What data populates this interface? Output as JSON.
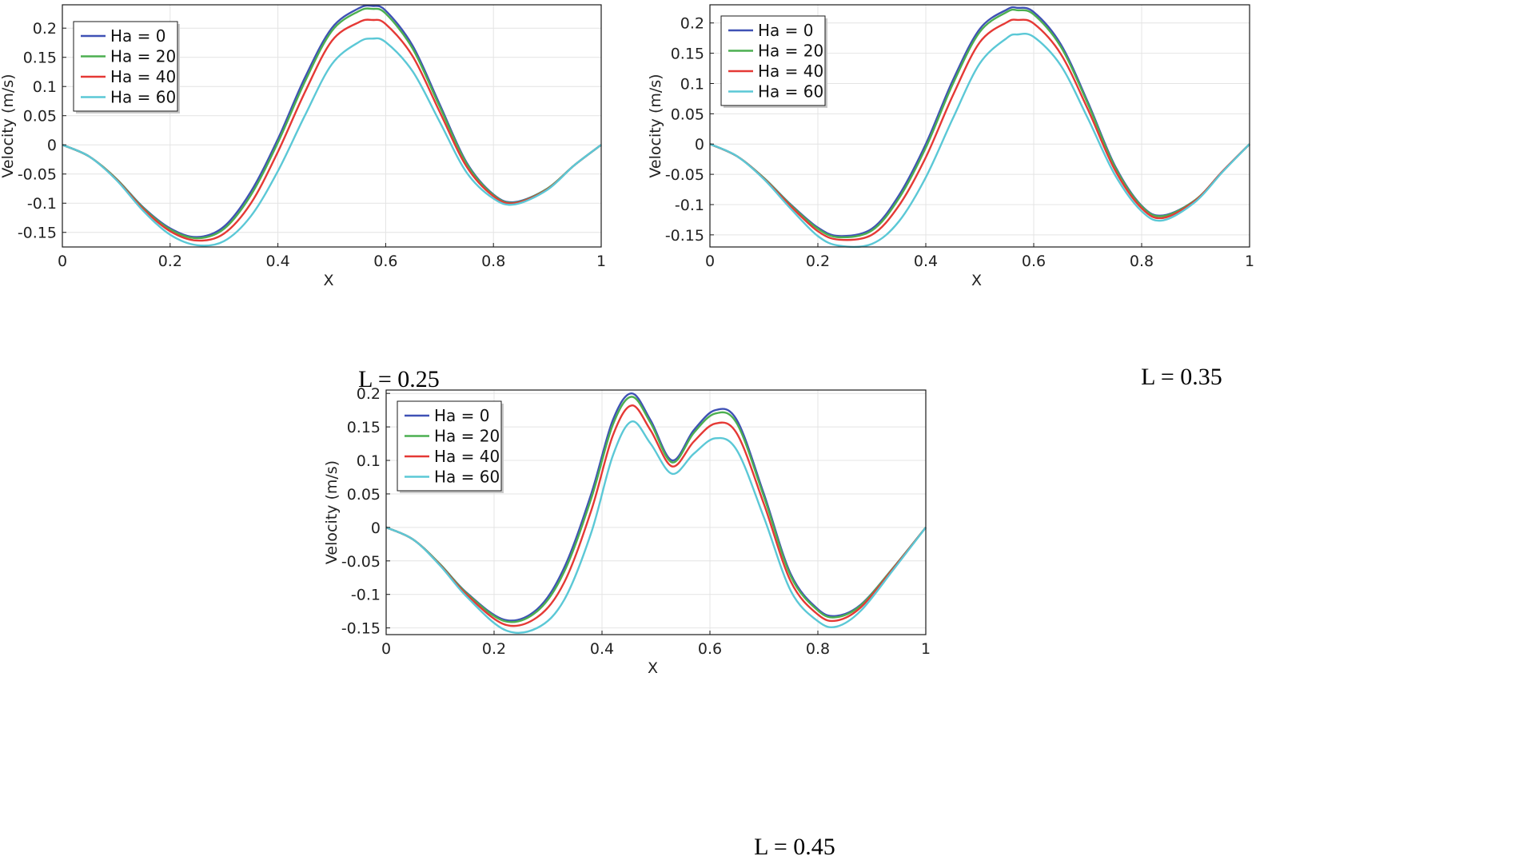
{
  "chart_data": [
    {
      "type": "line",
      "caption": "L = 0.25",
      "xlabel": "X",
      "ylabel": "Velocity (m/s)",
      "xlim": [
        0,
        1
      ],
      "ylim": [
        -0.175,
        0.24
      ],
      "xticks": [
        0,
        0.2,
        0.4,
        0.6,
        0.8,
        1
      ],
      "xtick_labels": [
        "0",
        "0.2",
        "0.4",
        "0.6",
        "0.8",
        "1"
      ],
      "yticks": [
        -0.15,
        -0.1,
        -0.05,
        0,
        0.05,
        0.1,
        0.15,
        0.2
      ],
      "ytick_labels": [
        "-0.15",
        "-0.1",
        "-0.05",
        "0",
        "0.05",
        "0.1",
        "0.15",
        "0.2"
      ],
      "grid": true,
      "legend": "top-left",
      "series": [
        {
          "name": "Ha = 0",
          "color": "#3f51b5",
          "x": [
            0,
            0.05,
            0.1,
            0.15,
            0.2,
            0.25,
            0.3,
            0.35,
            0.4,
            0.45,
            0.5,
            0.55,
            0.575,
            0.6,
            0.65,
            0.7,
            0.75,
            0.8,
            0.84,
            0.9,
            0.95,
            1
          ],
          "y": [
            0,
            -0.02,
            -0.058,
            -0.107,
            -0.143,
            -0.158,
            -0.14,
            -0.08,
            0.01,
            0.115,
            0.2,
            0.234,
            0.238,
            0.23,
            0.17,
            0.07,
            -0.03,
            -0.085,
            -0.098,
            -0.075,
            -0.035,
            0
          ]
        },
        {
          "name": "Ha = 20",
          "color": "#4caf50",
          "x": [
            0,
            0.05,
            0.1,
            0.15,
            0.2,
            0.25,
            0.3,
            0.35,
            0.4,
            0.45,
            0.5,
            0.55,
            0.575,
            0.6,
            0.65,
            0.7,
            0.75,
            0.8,
            0.84,
            0.9,
            0.95,
            1
          ],
          "y": [
            0,
            -0.02,
            -0.058,
            -0.108,
            -0.145,
            -0.16,
            -0.144,
            -0.086,
            0.004,
            0.108,
            0.195,
            0.229,
            0.233,
            0.225,
            0.165,
            0.066,
            -0.032,
            -0.086,
            -0.099,
            -0.075,
            -0.035,
            0
          ]
        },
        {
          "name": "Ha = 40",
          "color": "#e53935",
          "x": [
            0,
            0.05,
            0.1,
            0.15,
            0.2,
            0.25,
            0.3,
            0.35,
            0.4,
            0.45,
            0.5,
            0.55,
            0.575,
            0.6,
            0.65,
            0.7,
            0.75,
            0.8,
            0.84,
            0.9,
            0.95,
            1
          ],
          "y": [
            0,
            -0.02,
            -0.059,
            -0.11,
            -0.148,
            -0.164,
            -0.152,
            -0.1,
            -0.012,
            0.09,
            0.178,
            0.21,
            0.214,
            0.207,
            0.152,
            0.057,
            -0.037,
            -0.088,
            -0.1,
            -0.076,
            -0.035,
            0
          ]
        },
        {
          "name": "Ha = 60",
          "color": "#5bc8d6",
          "x": [
            0,
            0.05,
            0.1,
            0.15,
            0.2,
            0.25,
            0.3,
            0.35,
            0.4,
            0.45,
            0.5,
            0.55,
            0.575,
            0.6,
            0.65,
            0.7,
            0.75,
            0.8,
            0.84,
            0.9,
            0.95,
            1
          ],
          "y": [
            0,
            -0.02,
            -0.06,
            -0.113,
            -0.154,
            -0.172,
            -0.165,
            -0.122,
            -0.045,
            0.05,
            0.138,
            0.176,
            0.182,
            0.176,
            0.126,
            0.04,
            -0.047,
            -0.092,
            -0.102,
            -0.077,
            -0.035,
            0
          ]
        }
      ]
    },
    {
      "type": "line",
      "caption": "L = 0.35",
      "xlabel": "X",
      "ylabel": "Velocity (m/s)",
      "xlim": [
        0,
        1
      ],
      "ylim": [
        -0.17,
        0.23
      ],
      "xticks": [
        0,
        0.2,
        0.4,
        0.6,
        0.8,
        1
      ],
      "xtick_labels": [
        "0",
        "0.2",
        "0.4",
        "0.6",
        "0.8",
        "1"
      ],
      "yticks": [
        -0.15,
        -0.1,
        -0.05,
        0,
        0.05,
        0.1,
        0.15,
        0.2
      ],
      "ytick_labels": [
        "-0.15",
        "-0.1",
        "-0.05",
        "0",
        "0.05",
        "0.1",
        "0.15",
        "0.2"
      ],
      "grid": true,
      "legend": "top-left",
      "series": [
        {
          "name": "Ha = 0",
          "color": "#3f51b5",
          "x": [
            0,
            0.05,
            0.1,
            0.15,
            0.2,
            0.24,
            0.3,
            0.35,
            0.4,
            0.45,
            0.5,
            0.55,
            0.57,
            0.6,
            0.65,
            0.7,
            0.75,
            0.8,
            0.84,
            0.9,
            0.95,
            1
          ],
          "y": [
            0,
            -0.02,
            -0.056,
            -0.1,
            -0.138,
            -0.152,
            -0.14,
            -0.085,
            0.0,
            0.105,
            0.19,
            0.222,
            0.225,
            0.218,
            0.165,
            0.07,
            -0.035,
            -0.102,
            -0.118,
            -0.092,
            -0.045,
            0
          ]
        },
        {
          "name": "Ha = 20",
          "color": "#4caf50",
          "x": [
            0,
            0.05,
            0.1,
            0.15,
            0.2,
            0.24,
            0.3,
            0.35,
            0.4,
            0.45,
            0.5,
            0.55,
            0.57,
            0.6,
            0.65,
            0.7,
            0.75,
            0.8,
            0.84,
            0.9,
            0.95,
            1
          ],
          "y": [
            0,
            -0.02,
            -0.056,
            -0.101,
            -0.14,
            -0.154,
            -0.143,
            -0.09,
            -0.006,
            0.099,
            0.185,
            0.218,
            0.221,
            0.214,
            0.161,
            0.067,
            -0.037,
            -0.103,
            -0.119,
            -0.092,
            -0.045,
            0
          ]
        },
        {
          "name": "Ha = 40",
          "color": "#e53935",
          "x": [
            0,
            0.05,
            0.1,
            0.15,
            0.2,
            0.24,
            0.3,
            0.35,
            0.4,
            0.45,
            0.5,
            0.55,
            0.57,
            0.6,
            0.65,
            0.7,
            0.75,
            0.8,
            0.84,
            0.9,
            0.95,
            1
          ],
          "y": [
            0,
            -0.02,
            -0.057,
            -0.103,
            -0.144,
            -0.158,
            -0.15,
            -0.102,
            -0.022,
            0.08,
            0.168,
            0.201,
            0.205,
            0.199,
            0.149,
            0.058,
            -0.042,
            -0.106,
            -0.122,
            -0.093,
            -0.045,
            0
          ]
        },
        {
          "name": "Ha = 60",
          "color": "#5bc8d6",
          "x": [
            0,
            0.05,
            0.1,
            0.15,
            0.2,
            0.24,
            0.3,
            0.35,
            0.4,
            0.45,
            0.5,
            0.55,
            0.57,
            0.6,
            0.65,
            0.7,
            0.75,
            0.8,
            0.84,
            0.9,
            0.95,
            1
          ],
          "y": [
            0,
            -0.02,
            -0.058,
            -0.107,
            -0.152,
            -0.168,
            -0.165,
            -0.128,
            -0.055,
            0.042,
            0.133,
            0.175,
            0.181,
            0.177,
            0.13,
            0.043,
            -0.05,
            -0.111,
            -0.126,
            -0.095,
            -0.046,
            0
          ]
        }
      ]
    },
    {
      "type": "line",
      "caption": "L = 0.45",
      "xlabel": "X",
      "ylabel": "Velocity (m/s)",
      "xlim": [
        0,
        1
      ],
      "ylim": [
        -0.16,
        0.205
      ],
      "xticks": [
        0,
        0.2,
        0.4,
        0.6,
        0.8,
        1
      ],
      "xtick_labels": [
        "0",
        "0.2",
        "0.4",
        "0.6",
        "0.8",
        "1"
      ],
      "yticks": [
        -0.15,
        -0.1,
        -0.05,
        0,
        0.05,
        0.1,
        0.15,
        0.2
      ],
      "ytick_labels": [
        "-0.15",
        "-0.1",
        "-0.05",
        "0",
        "0.05",
        "0.1",
        "0.15",
        "0.2"
      ],
      "grid": true,
      "legend": "top-left",
      "series": [
        {
          "name": "Ha = 0",
          "color": "#3f51b5",
          "x": [
            0,
            0.05,
            0.1,
            0.15,
            0.22,
            0.28,
            0.33,
            0.38,
            0.42,
            0.455,
            0.49,
            0.53,
            0.57,
            0.61,
            0.65,
            0.7,
            0.75,
            0.8,
            0.835,
            0.88,
            0.94,
            1
          ],
          "y": [
            0,
            -0.018,
            -0.055,
            -0.098,
            -0.138,
            -0.122,
            -0.06,
            0.05,
            0.16,
            0.2,
            0.16,
            0.1,
            0.145,
            0.175,
            0.16,
            0.05,
            -0.07,
            -0.122,
            -0.132,
            -0.115,
            -0.06,
            0
          ]
        },
        {
          "name": "Ha = 20",
          "color": "#4caf50",
          "x": [
            0,
            0.05,
            0.1,
            0.15,
            0.22,
            0.28,
            0.33,
            0.38,
            0.42,
            0.455,
            0.49,
            0.53,
            0.57,
            0.61,
            0.65,
            0.7,
            0.75,
            0.8,
            0.835,
            0.88,
            0.94,
            1
          ],
          "y": [
            0,
            -0.018,
            -0.055,
            -0.099,
            -0.14,
            -0.125,
            -0.066,
            0.043,
            0.153,
            0.195,
            0.156,
            0.097,
            0.141,
            0.17,
            0.155,
            0.046,
            -0.073,
            -0.124,
            -0.134,
            -0.116,
            -0.06,
            0
          ]
        },
        {
          "name": "Ha = 40",
          "color": "#e53935",
          "x": [
            0,
            0.05,
            0.1,
            0.15,
            0.22,
            0.28,
            0.33,
            0.38,
            0.42,
            0.455,
            0.49,
            0.53,
            0.57,
            0.61,
            0.65,
            0.7,
            0.75,
            0.8,
            0.835,
            0.88,
            0.94,
            1
          ],
          "y": [
            0,
            -0.018,
            -0.056,
            -0.101,
            -0.145,
            -0.134,
            -0.082,
            0.025,
            0.137,
            0.182,
            0.145,
            0.091,
            0.128,
            0.155,
            0.14,
            0.035,
            -0.081,
            -0.13,
            -0.139,
            -0.119,
            -0.061,
            0
          ]
        },
        {
          "name": "Ha = 60",
          "color": "#5bc8d6",
          "x": [
            0,
            0.05,
            0.1,
            0.15,
            0.22,
            0.28,
            0.33,
            0.38,
            0.42,
            0.455,
            0.49,
            0.53,
            0.57,
            0.61,
            0.65,
            0.7,
            0.75,
            0.8,
            0.835,
            0.88,
            0.94,
            1
          ],
          "y": [
            0,
            -0.018,
            -0.057,
            -0.104,
            -0.153,
            -0.15,
            -0.108,
            -0.008,
            0.107,
            0.158,
            0.125,
            0.08,
            0.11,
            0.133,
            0.115,
            0.015,
            -0.095,
            -0.14,
            -0.148,
            -0.124,
            -0.063,
            0
          ]
        }
      ]
    }
  ]
}
